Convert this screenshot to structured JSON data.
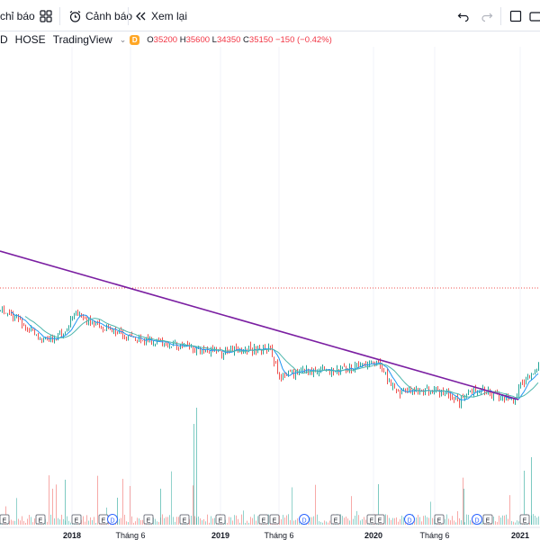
{
  "toolbar": {
    "indicators_label": "chỉ báo",
    "alerts_label": "Cảnh báo",
    "replay_label": "Xem lại"
  },
  "legend": {
    "symbol_fragment": "D",
    "exchange": "HOSE",
    "source": "TradingView",
    "interval_badge": "D",
    "open_key": "O",
    "open": "35200",
    "high_key": "H",
    "high": "35600",
    "low_key": "L",
    "low": "34350",
    "close_key": "C",
    "close": "35150",
    "change": "−150 (−0.42%)"
  },
  "colors": {
    "up": "#26a69a",
    "down": "#ef5350",
    "trendline": "#7b1fa2",
    "price_line": "#ef5350",
    "ma_fast": "#2196f3",
    "ma_slow": "#4db6ac"
  },
  "chart_data": {
    "type": "candlestick",
    "x_ticks": [
      "2018",
      "Tháng 6",
      "2019",
      "Tháng 6",
      "2020",
      "Tháng 6",
      "2021"
    ],
    "events": [
      "E",
      "E",
      "E",
      "E",
      "D",
      "E",
      "E",
      "E",
      "E",
      "E",
      "D",
      "E",
      "E",
      "E",
      "D",
      "E",
      "D",
      "E",
      "E"
    ]
  }
}
